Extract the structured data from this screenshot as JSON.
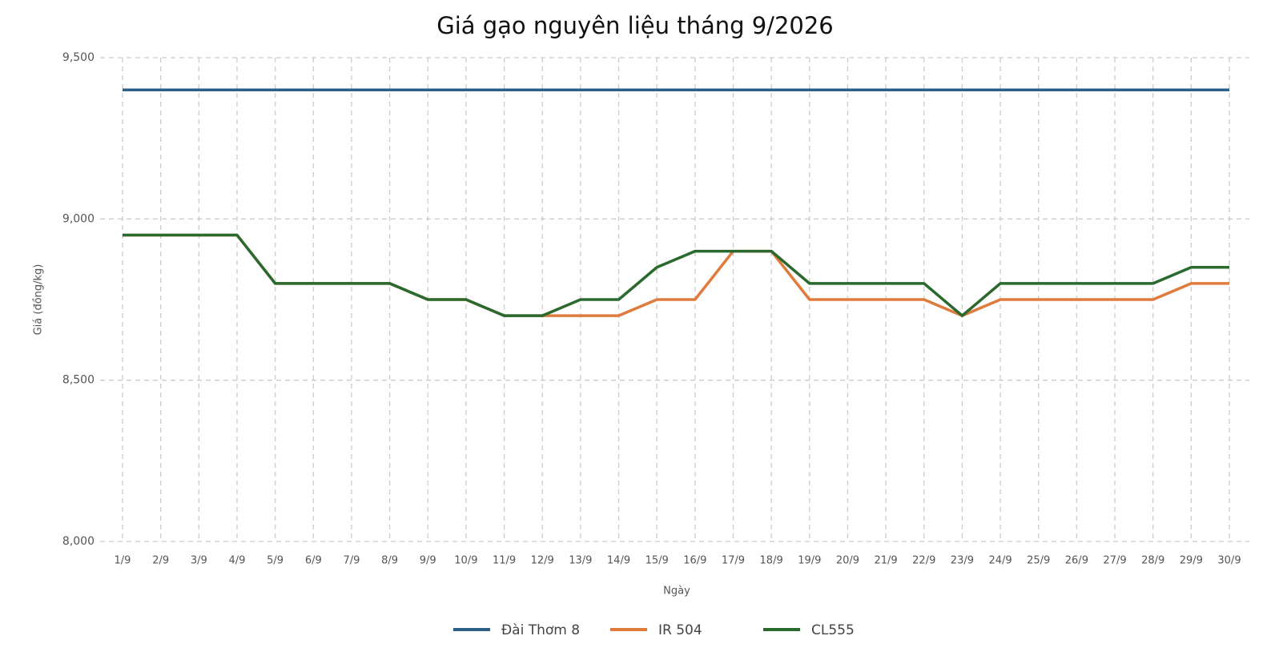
{
  "chart_data": {
    "type": "line",
    "title": "Giá gạo nguyên liệu tháng 9/2026",
    "x_label": "Ngày",
    "y_label": "Giá (đồng/kg)",
    "categories": [
      "1/9",
      "2/9",
      "3/9",
      "4/9",
      "5/9",
      "6/9",
      "7/9",
      "8/9",
      "9/9",
      "10/9",
      "11/9",
      "12/9",
      "13/9",
      "14/9",
      "15/9",
      "16/9",
      "17/9",
      "18/9",
      "19/9",
      "20/9",
      "21/9",
      "22/9",
      "23/9",
      "24/9",
      "25/9",
      "26/9",
      "27/9",
      "28/9",
      "29/9",
      "30/9"
    ],
    "series": [
      {
        "name": "Đài Thơm 8",
        "color": "#2b5f86",
        "values": [
          9400,
          9400,
          9400,
          9400,
          9400,
          9400,
          9400,
          9400,
          9400,
          9400,
          9400,
          9400,
          9400,
          9400,
          9400,
          9400,
          9400,
          9400,
          9400,
          9400,
          9400,
          9400,
          9400,
          9400,
          9400,
          9400,
          9400,
          9400,
          9400,
          9400
        ]
      },
      {
        "name": "IR 504",
        "color": "#e07b3e",
        "values": [
          8950,
          8950,
          8950,
          8950,
          8800,
          8800,
          8800,
          8800,
          8750,
          8750,
          8700,
          8700,
          8700,
          8700,
          8750,
          8750,
          8900,
          8900,
          8750,
          8750,
          8750,
          8750,
          8700,
          8750,
          8750,
          8750,
          8750,
          8750,
          8800,
          8800
        ]
      },
      {
        "name": "CL555",
        "color": "#2a6a2e",
        "values": [
          8950,
          8950,
          8950,
          8950,
          8800,
          8800,
          8800,
          8800,
          8750,
          8750,
          8700,
          8700,
          8750,
          8750,
          8850,
          8900,
          8900,
          8900,
          8800,
          8800,
          8800,
          8800,
          8700,
          8800,
          8800,
          8800,
          8800,
          8800,
          8850,
          8850
        ]
      }
    ],
    "ylim": [
      8000,
      9500
    ],
    "yticks": [
      {
        "value": 8000,
        "label": "8,000"
      },
      {
        "value": 8500,
        "label": "8,500"
      },
      {
        "value": 9000,
        "label": "9,000"
      },
      {
        "value": 9500,
        "label": "9,500"
      }
    ],
    "grid": true,
    "legend": "bottom"
  }
}
